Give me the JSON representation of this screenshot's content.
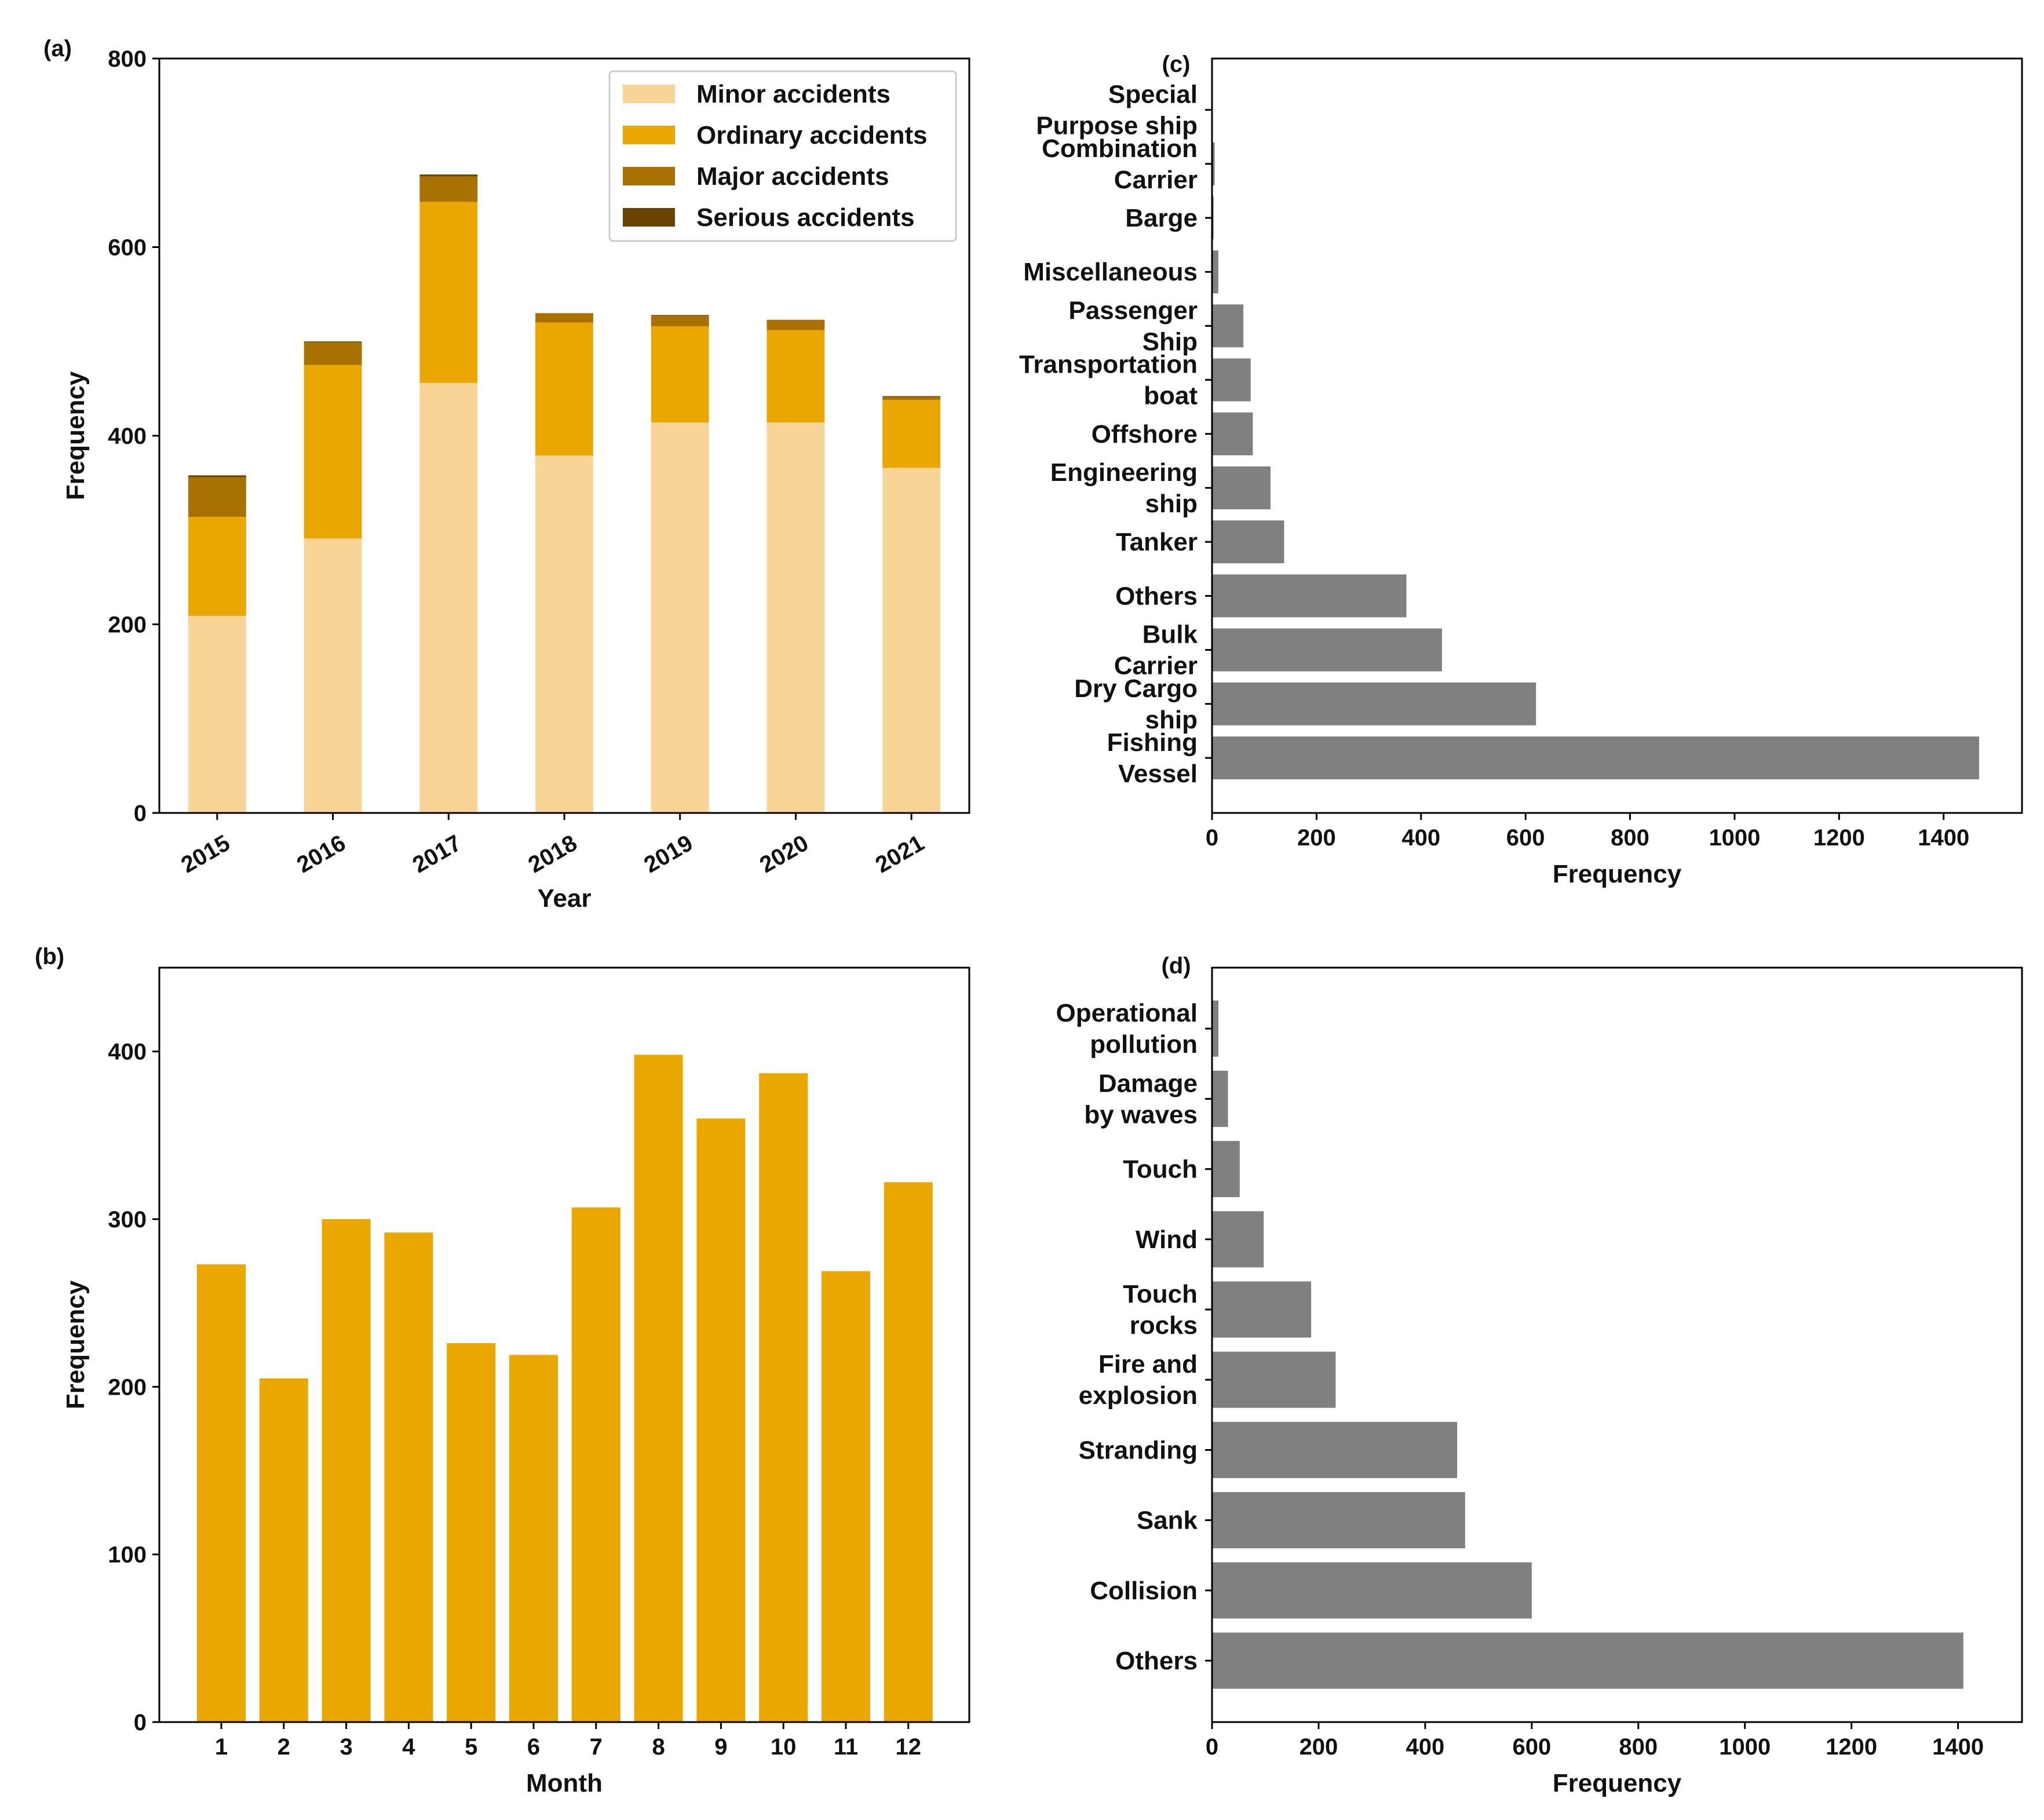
{
  "colors": {
    "minor": "#f8d597",
    "ordinary": "#eaa601",
    "major": "#a87100",
    "serious": "#6a4300",
    "month_bar": "#eaa601",
    "gray_bar": "#808080",
    "axis": "#000000"
  },
  "chart_data": [
    {
      "panel": "(a)",
      "type": "bar",
      "stacked": true,
      "xlabel": "Year",
      "ylabel": "Frequency",
      "ylim": [
        0,
        800
      ],
      "yticks": [
        "0",
        "200",
        "400",
        "600",
        "800"
      ],
      "categories": [
        "2015",
        "2016",
        "2017",
        "2018",
        "2019",
        "2020",
        "2021"
      ],
      "legend_position": "top-right",
      "series": [
        {
          "name": "Minor accidents",
          "key": "minor",
          "values": [
            209,
            291,
            456,
            379,
            414,
            414,
            366
          ]
        },
        {
          "name": "Ordinary accidents",
          "key": "ordinary",
          "values": [
            105,
            184,
            192,
            141,
            102,
            98,
            72
          ]
        },
        {
          "name": "Major accidents",
          "key": "major",
          "values": [
            42,
            24,
            27,
            10,
            11,
            11,
            3
          ]
        },
        {
          "name": "Serious accidents",
          "key": "serious",
          "values": [
            2,
            1,
            2,
            0,
            1,
            0,
            1
          ]
        }
      ]
    },
    {
      "panel": "(b)",
      "type": "bar",
      "xlabel": "Month",
      "ylabel": "Frequency",
      "ylim": [
        0,
        450
      ],
      "yticks": [
        "0",
        "100",
        "200",
        "300",
        "400"
      ],
      "categories": [
        "1",
        "2",
        "3",
        "4",
        "5",
        "6",
        "7",
        "8",
        "9",
        "10",
        "11",
        "12"
      ],
      "values": [
        273,
        205,
        300,
        292,
        226,
        219,
        307,
        398,
        360,
        387,
        269,
        322
      ]
    },
    {
      "panel": "(c)",
      "type": "bar",
      "orientation": "horizontal",
      "xlabel": "Frequency",
      "xlim": [
        0,
        1550
      ],
      "xticks": [
        "0",
        "200",
        "400",
        "600",
        "800",
        "1000",
        "1200",
        "1400"
      ],
      "categories": [
        {
          "lines": [
            "Fishing",
            "Vessel"
          ],
          "value": 1468
        },
        {
          "lines": [
            "Dry Cargo",
            "ship"
          ],
          "value": 620
        },
        {
          "lines": [
            "Bulk",
            "Carrier"
          ],
          "value": 440
        },
        {
          "lines": [
            "Others"
          ],
          "value": 372
        },
        {
          "lines": [
            "Tanker"
          ],
          "value": 138
        },
        {
          "lines": [
            "Engineering",
            "ship"
          ],
          "value": 112
        },
        {
          "lines": [
            "Offshore"
          ],
          "value": 78
        },
        {
          "lines": [
            "Transportation",
            "boat"
          ],
          "value": 74
        },
        {
          "lines": [
            "Passenger",
            "Ship"
          ],
          "value": 60
        },
        {
          "lines": [
            "Miscellaneous"
          ],
          "value": 12
        },
        {
          "lines": [
            "Barge"
          ],
          "value": 3
        },
        {
          "lines": [
            "Combination",
            "Carrier"
          ],
          "value": 5
        },
        {
          "lines": [
            "Special",
            "Purpose ship"
          ],
          "value": 1
        }
      ]
    },
    {
      "panel": "(d)",
      "type": "bar",
      "orientation": "horizontal",
      "xlabel": "Frequency",
      "xlim": [
        0,
        1520
      ],
      "xticks": [
        "0",
        "200",
        "400",
        "600",
        "800",
        "1000",
        "1200",
        "1400"
      ],
      "categories": [
        {
          "lines": [
            "Others"
          ],
          "value": 1410
        },
        {
          "lines": [
            "Collision"
          ],
          "value": 600
        },
        {
          "lines": [
            "Sank"
          ],
          "value": 475
        },
        {
          "lines": [
            "Stranding"
          ],
          "value": 460
        },
        {
          "lines": [
            "Fire and",
            "explosion"
          ],
          "value": 232
        },
        {
          "lines": [
            "Touch",
            "rocks"
          ],
          "value": 186
        },
        {
          "lines": [
            "Wind"
          ],
          "value": 97
        },
        {
          "lines": [
            "Touch"
          ],
          "value": 52
        },
        {
          "lines": [
            "Damage",
            "by waves"
          ],
          "value": 30
        },
        {
          "lines": [
            "Operational",
            "pollution"
          ],
          "value": 12
        }
      ]
    }
  ]
}
